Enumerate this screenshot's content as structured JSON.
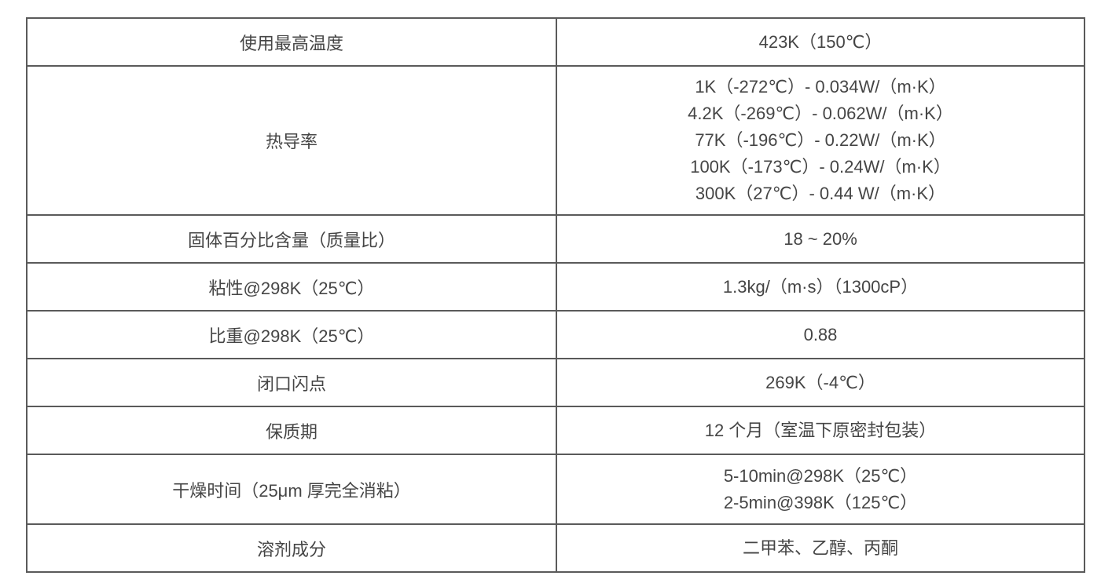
{
  "rows": [
    {
      "label": "使用最高温度",
      "values": [
        "423K（150℃）"
      ]
    },
    {
      "label": "热导率",
      "values": [
        "1K（-272℃）- 0.034W/（m·K）",
        "4.2K（-269℃）- 0.062W/（m·K）",
        "77K（-196℃）- 0.22W/（m·K）",
        "100K（-173℃）- 0.24W/（m·K）",
        "300K（27℃）- 0.44 W/（m·K）"
      ]
    },
    {
      "label": "固体百分比含量（质量比）",
      "values": [
        "18 ~ 20%"
      ]
    },
    {
      "label": "粘性@298K（25℃）",
      "values": [
        "1.3kg/（m·s）（1300cP）"
      ]
    },
    {
      "label": "比重@298K（25℃）",
      "values": [
        "0.88"
      ]
    },
    {
      "label": "闭口闪点",
      "values": [
        "269K（-4℃）"
      ]
    },
    {
      "label": "保质期",
      "values": [
        "12 个月（室温下原密封包装）"
      ]
    },
    {
      "label": "干燥时间（25μm 厚完全消粘）",
      "values": [
        "5-10min@298K（25℃）",
        "2-5min@398K（125℃）"
      ]
    },
    {
      "label": "溶剂成分",
      "values": [
        "二甲苯、乙醇、丙酮"
      ]
    }
  ]
}
